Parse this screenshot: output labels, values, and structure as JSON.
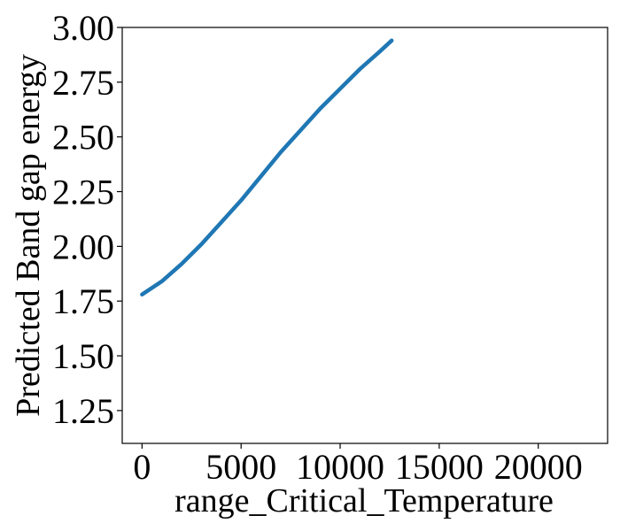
{
  "chart_data": {
    "type": "line",
    "title": "",
    "xlabel": "range_Critical_Temperature",
    "ylabel": "Predicted Band gap energy",
    "xlim": [
      -1000,
      23500
    ],
    "ylim": [
      1.1,
      3.0
    ],
    "xticks": [
      0,
      5000,
      10000,
      15000,
      20000
    ],
    "xtick_labels": [
      "0",
      "5000",
      "10000",
      "15000",
      "20000"
    ],
    "yticks": [
      1.25,
      1.5,
      1.75,
      2.0,
      2.25,
      2.5,
      2.75,
      3.0
    ],
    "ytick_labels": [
      "1.25",
      "1.50",
      "1.75",
      "2.00",
      "2.25",
      "2.50",
      "2.75",
      "3.00"
    ],
    "grid": false,
    "series": [
      {
        "color": "#1f77b4",
        "x": [
          0,
          1000,
          2000,
          3000,
          4000,
          5000,
          6000,
          7000,
          8000,
          9000,
          10000,
          11000,
          12000,
          12600
        ],
        "y": [
          1.78,
          1.84,
          1.92,
          2.01,
          2.11,
          2.21,
          2.32,
          2.43,
          2.53,
          2.63,
          2.72,
          2.81,
          2.89,
          2.94
        ]
      }
    ]
  }
}
